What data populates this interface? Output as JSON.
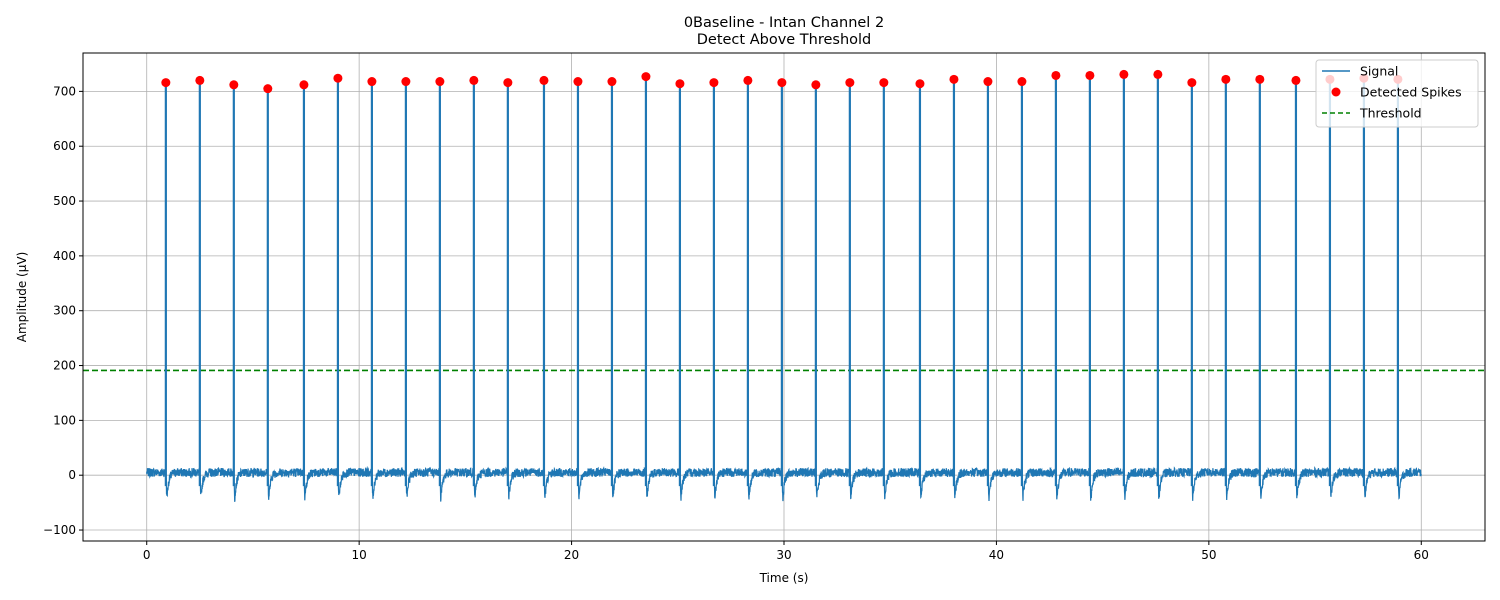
{
  "chart_data": {
    "type": "line",
    "title": "0Baseline - Intan Channel 2",
    "subtitle": "Detect Above Threshold",
    "xlabel": "Time (s)",
    "ylabel": "Amplitude (µV)",
    "xlim": [
      -3,
      63
    ],
    "ylim": [
      -120,
      770
    ],
    "x_ticks": [
      0,
      10,
      20,
      30,
      40,
      50,
      60
    ],
    "y_ticks": [
      -100,
      0,
      100,
      200,
      300,
      400,
      500,
      600,
      700
    ],
    "grid": true,
    "legend_position": "top-right",
    "threshold": 191,
    "signal_range": [
      0,
      60
    ],
    "series": [
      {
        "name": "Signal",
        "type": "line",
        "color": "#1f77b4",
        "spike_times": [
          0.9,
          2.5,
          4.1,
          5.7,
          7.4,
          9.0,
          10.6,
          12.2,
          13.8,
          15.4,
          17.0,
          18.7,
          20.3,
          21.9,
          23.5,
          25.1,
          26.7,
          28.3,
          29.9,
          31.5,
          33.1,
          34.7,
          36.4,
          38.0,
          39.6,
          41.2,
          42.8,
          44.4,
          46.0,
          47.6,
          49.2,
          50.8,
          52.4,
          54.1,
          55.7,
          57.3,
          58.9
        ],
        "spike_peaks": [
          716,
          720,
          712,
          705,
          712,
          724,
          718,
          718,
          718,
          720,
          716,
          720,
          718,
          718,
          727,
          714,
          716,
          720,
          716,
          712,
          716,
          716,
          714,
          722,
          718,
          718,
          729,
          729,
          731,
          731,
          716,
          722,
          722,
          720,
          722,
          724,
          722
        ]
      },
      {
        "name": "Detected Spikes",
        "type": "scatter",
        "color": "#ff0000",
        "x": [
          0.9,
          2.5,
          4.1,
          5.7,
          7.4,
          9.0,
          10.6,
          12.2,
          13.8,
          15.4,
          17.0,
          18.7,
          20.3,
          21.9,
          23.5,
          25.1,
          26.7,
          28.3,
          29.9,
          31.5,
          33.1,
          34.7,
          36.4,
          38.0,
          39.6,
          41.2,
          42.8,
          44.4,
          46.0,
          47.6,
          49.2,
          50.8,
          52.4,
          54.1,
          55.7,
          57.3,
          58.9
        ],
        "y": [
          716,
          720,
          712,
          705,
          712,
          724,
          718,
          718,
          718,
          720,
          716,
          720,
          718,
          718,
          727,
          714,
          716,
          720,
          716,
          712,
          716,
          716,
          714,
          722,
          718,
          718,
          729,
          729,
          731,
          731,
          716,
          722,
          722,
          720,
          722,
          724,
          722
        ]
      },
      {
        "name": "Threshold",
        "type": "hline",
        "color": "#008000",
        "y": 191
      }
    ]
  }
}
